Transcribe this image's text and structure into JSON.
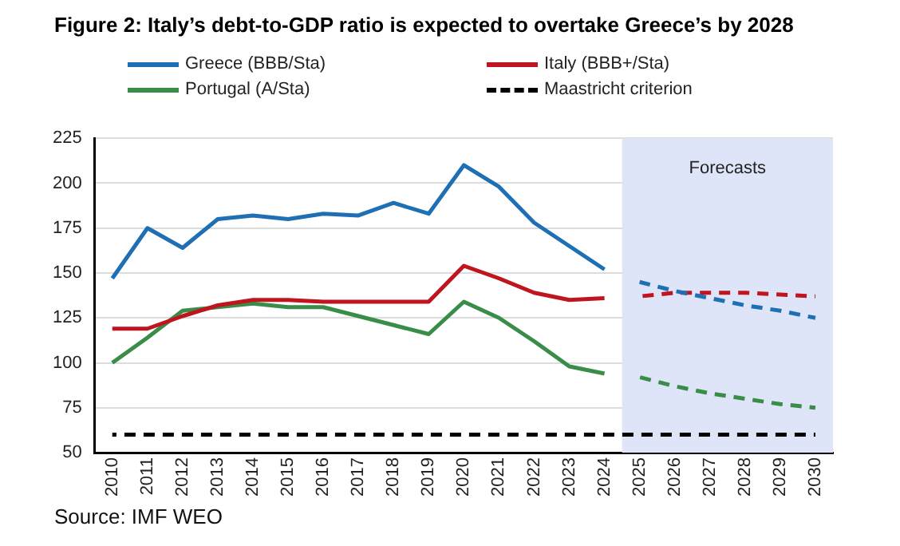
{
  "chart_data": {
    "type": "line",
    "title": "Figure 2: Italy’s debt-to-GDP ratio is expected to overtake Greece’s by 2028",
    "categories": [
      "2010",
      "2011",
      "2012",
      "2013",
      "2014",
      "2015",
      "2016",
      "2017",
      "2018",
      "2019",
      "2020",
      "2021",
      "2022",
      "2023",
      "2024",
      "2025",
      "2026",
      "2027",
      "2028",
      "2029",
      "2030"
    ],
    "series": [
      {
        "name": "Greece (BBB/Sta)",
        "color": "#1f6fb4",
        "line_style": "solid",
        "values": [
          147,
          175,
          164,
          180,
          182,
          180,
          183,
          182,
          189,
          183,
          210,
          198,
          178,
          165,
          152,
          null,
          null,
          null,
          null,
          null,
          null
        ]
      },
      {
        "name": "Italy (BBB+/Sta)",
        "color": "#c0141f",
        "line_style": "solid",
        "values": [
          119,
          119,
          126,
          132,
          135,
          135,
          134,
          134,
          134,
          134,
          154,
          147,
          139,
          135,
          136,
          null,
          null,
          null,
          null,
          null,
          null
        ]
      },
      {
        "name": "Portugal (A/Sta)",
        "color": "#3a8d48",
        "line_style": "solid",
        "values": [
          100,
          114,
          129,
          131,
          133,
          131,
          131,
          126,
          121,
          116,
          134,
          125,
          112,
          98,
          94,
          null,
          null,
          null,
          null,
          null,
          null
        ]
      },
      {
        "name": "Maastricht criterion",
        "color": "#000000",
        "line_style": "dashed",
        "values": [
          60,
          60,
          60,
          60,
          60,
          60,
          60,
          60,
          60,
          60,
          60,
          60,
          60,
          60,
          60,
          60,
          60,
          60,
          60,
          60,
          60
        ]
      },
      {
        "color": "#1f6fb4",
        "line_style": "dashed",
        "values": [
          null,
          null,
          null,
          null,
          null,
          null,
          null,
          null,
          null,
          null,
          null,
          null,
          null,
          null,
          null,
          145,
          140,
          136,
          132,
          129,
          125
        ]
      },
      {
        "color": "#c0141f",
        "line_style": "dashed",
        "values": [
          null,
          null,
          null,
          null,
          null,
          null,
          null,
          null,
          null,
          null,
          null,
          null,
          null,
          null,
          null,
          137,
          139,
          139,
          139,
          138,
          137
        ]
      },
      {
        "color": "#3a8d48",
        "line_style": "dashed",
        "values": [
          null,
          null,
          null,
          null,
          null,
          null,
          null,
          null,
          null,
          null,
          null,
          null,
          null,
          null,
          null,
          92,
          87,
          83,
          80,
          77,
          75
        ]
      }
    ],
    "ylim": [
      50,
      225
    ],
    "yticks": [
      50,
      75,
      100,
      125,
      150,
      175,
      200,
      225
    ],
    "grid": "y",
    "legend": "top",
    "marker": "none",
    "bands": [
      {
        "axis": "x",
        "from": "2025",
        "to": "2030",
        "label": "Forecasts",
        "color": "#dfe5f8"
      }
    ],
    "annotations": [
      "Source: IMF WEO"
    ]
  }
}
